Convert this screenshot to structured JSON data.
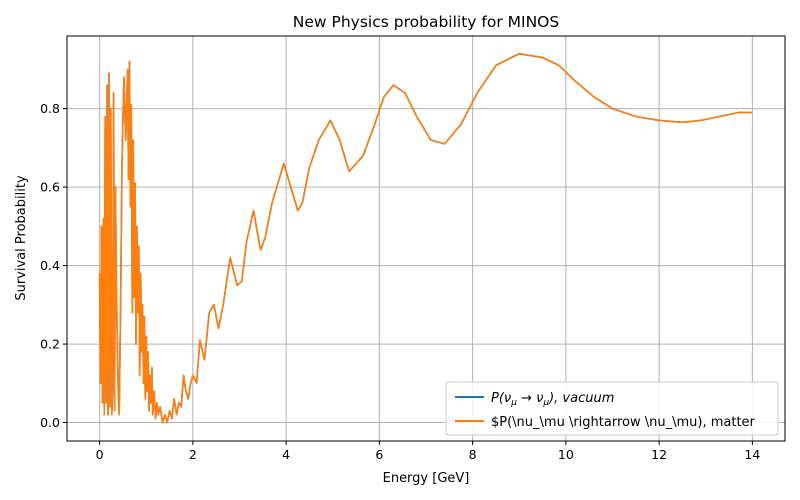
{
  "chart_data": {
    "type": "line",
    "title": "New Physics probability for MINOS",
    "xlabel": "Energy [GeV]",
    "ylabel": "Survival Probability",
    "xlim": [
      -0.7,
      14.7
    ],
    "ylim": [
      -0.047,
      0.985
    ],
    "xticks": [
      0,
      2,
      4,
      6,
      8,
      10,
      12,
      14
    ],
    "xtick_labels": [
      "0",
      "2",
      "4",
      "6",
      "8",
      "10",
      "12",
      "14"
    ],
    "yticks": [
      0.0,
      0.2,
      0.4,
      0.6,
      0.8
    ],
    "ytick_labels": [
      "0.0",
      "0.2",
      "0.4",
      "0.6",
      "0.8"
    ],
    "grid": true,
    "legend_position": "lower-right",
    "series": [
      {
        "name": "P(ν_μ → ν_μ), vacuum",
        "legend_parts": [
          "P(",
          "ν",
          "μ",
          " → ",
          "ν",
          "μ",
          "), vacuum"
        ],
        "color": "#1f77b4",
        "x": [
          0.0,
          0.02,
          0.04,
          0.06,
          0.08,
          0.1,
          0.12,
          0.14,
          0.16,
          0.18,
          0.2,
          0.22,
          0.24,
          0.26,
          0.28,
          0.3,
          0.32,
          0.34,
          0.36,
          0.38,
          0.4,
          0.42,
          0.45,
          0.48,
          0.52,
          0.56,
          0.6,
          0.62,
          0.64,
          0.66,
          0.68,
          0.7,
          0.72,
          0.74,
          0.76,
          0.78,
          0.8,
          0.82,
          0.84,
          0.86,
          0.88,
          0.9,
          0.92,
          0.94,
          0.96,
          0.98,
          1.0,
          1.02,
          1.04,
          1.06,
          1.08,
          1.1,
          1.12,
          1.14,
          1.17,
          1.2,
          1.23,
          1.26,
          1.3,
          1.35,
          1.4,
          1.45,
          1.5,
          1.55,
          1.6,
          1.65,
          1.7,
          1.75,
          1.8,
          1.85,
          1.9,
          1.95,
          2.0,
          2.08,
          2.15,
          2.25,
          2.35,
          2.45,
          2.55,
          2.65,
          2.8,
          2.95,
          3.05,
          3.15,
          3.3,
          3.45,
          3.55,
          3.7,
          3.95,
          4.1,
          4.25,
          4.35,
          4.5,
          4.7,
          4.95,
          5.15,
          5.35,
          5.65,
          5.9,
          6.1,
          6.3,
          6.55,
          6.8,
          7.1,
          7.4,
          7.75,
          8.1,
          8.5,
          9.0,
          9.5,
          9.85,
          10.2,
          10.6,
          11.0,
          11.5,
          12.0,
          12.5,
          12.9,
          13.3,
          13.7,
          14.0
        ],
        "y": [
          0.38,
          0.1,
          0.5,
          0.05,
          0.52,
          0.02,
          0.78,
          0.05,
          0.86,
          0.02,
          0.89,
          0.04,
          0.8,
          0.02,
          0.1,
          0.84,
          0.03,
          0.6,
          0.35,
          0.2,
          0.07,
          0.02,
          0.3,
          0.66,
          0.88,
          0.72,
          0.9,
          0.62,
          0.92,
          0.55,
          0.81,
          0.28,
          0.72,
          0.32,
          0.61,
          0.2,
          0.5,
          0.28,
          0.45,
          0.12,
          0.38,
          0.18,
          0.3,
          0.1,
          0.27,
          0.06,
          0.22,
          0.08,
          0.18,
          0.03,
          0.12,
          0.05,
          0.14,
          0.02,
          0.08,
          0.01,
          0.05,
          0.02,
          0.04,
          0.0,
          0.02,
          0.0,
          0.03,
          0.01,
          0.06,
          0.02,
          0.05,
          0.04,
          0.12,
          0.08,
          0.06,
          0.1,
          0.12,
          0.1,
          0.21,
          0.16,
          0.28,
          0.3,
          0.24,
          0.3,
          0.42,
          0.35,
          0.36,
          0.46,
          0.54,
          0.44,
          0.47,
          0.56,
          0.66,
          0.6,
          0.54,
          0.56,
          0.65,
          0.72,
          0.77,
          0.72,
          0.64,
          0.68,
          0.76,
          0.83,
          0.86,
          0.84,
          0.78,
          0.72,
          0.71,
          0.76,
          0.84,
          0.91,
          0.94,
          0.93,
          0.91,
          0.87,
          0.83,
          0.8,
          0.78,
          0.77,
          0.765,
          0.77,
          0.78,
          0.79,
          0.79
        ]
      },
      {
        "name": "$P(\\nu_\\mu \\rightarrow \\nu_\\mu), matter",
        "color": "#ff7f0e",
        "same_as_series": 0
      }
    ]
  }
}
